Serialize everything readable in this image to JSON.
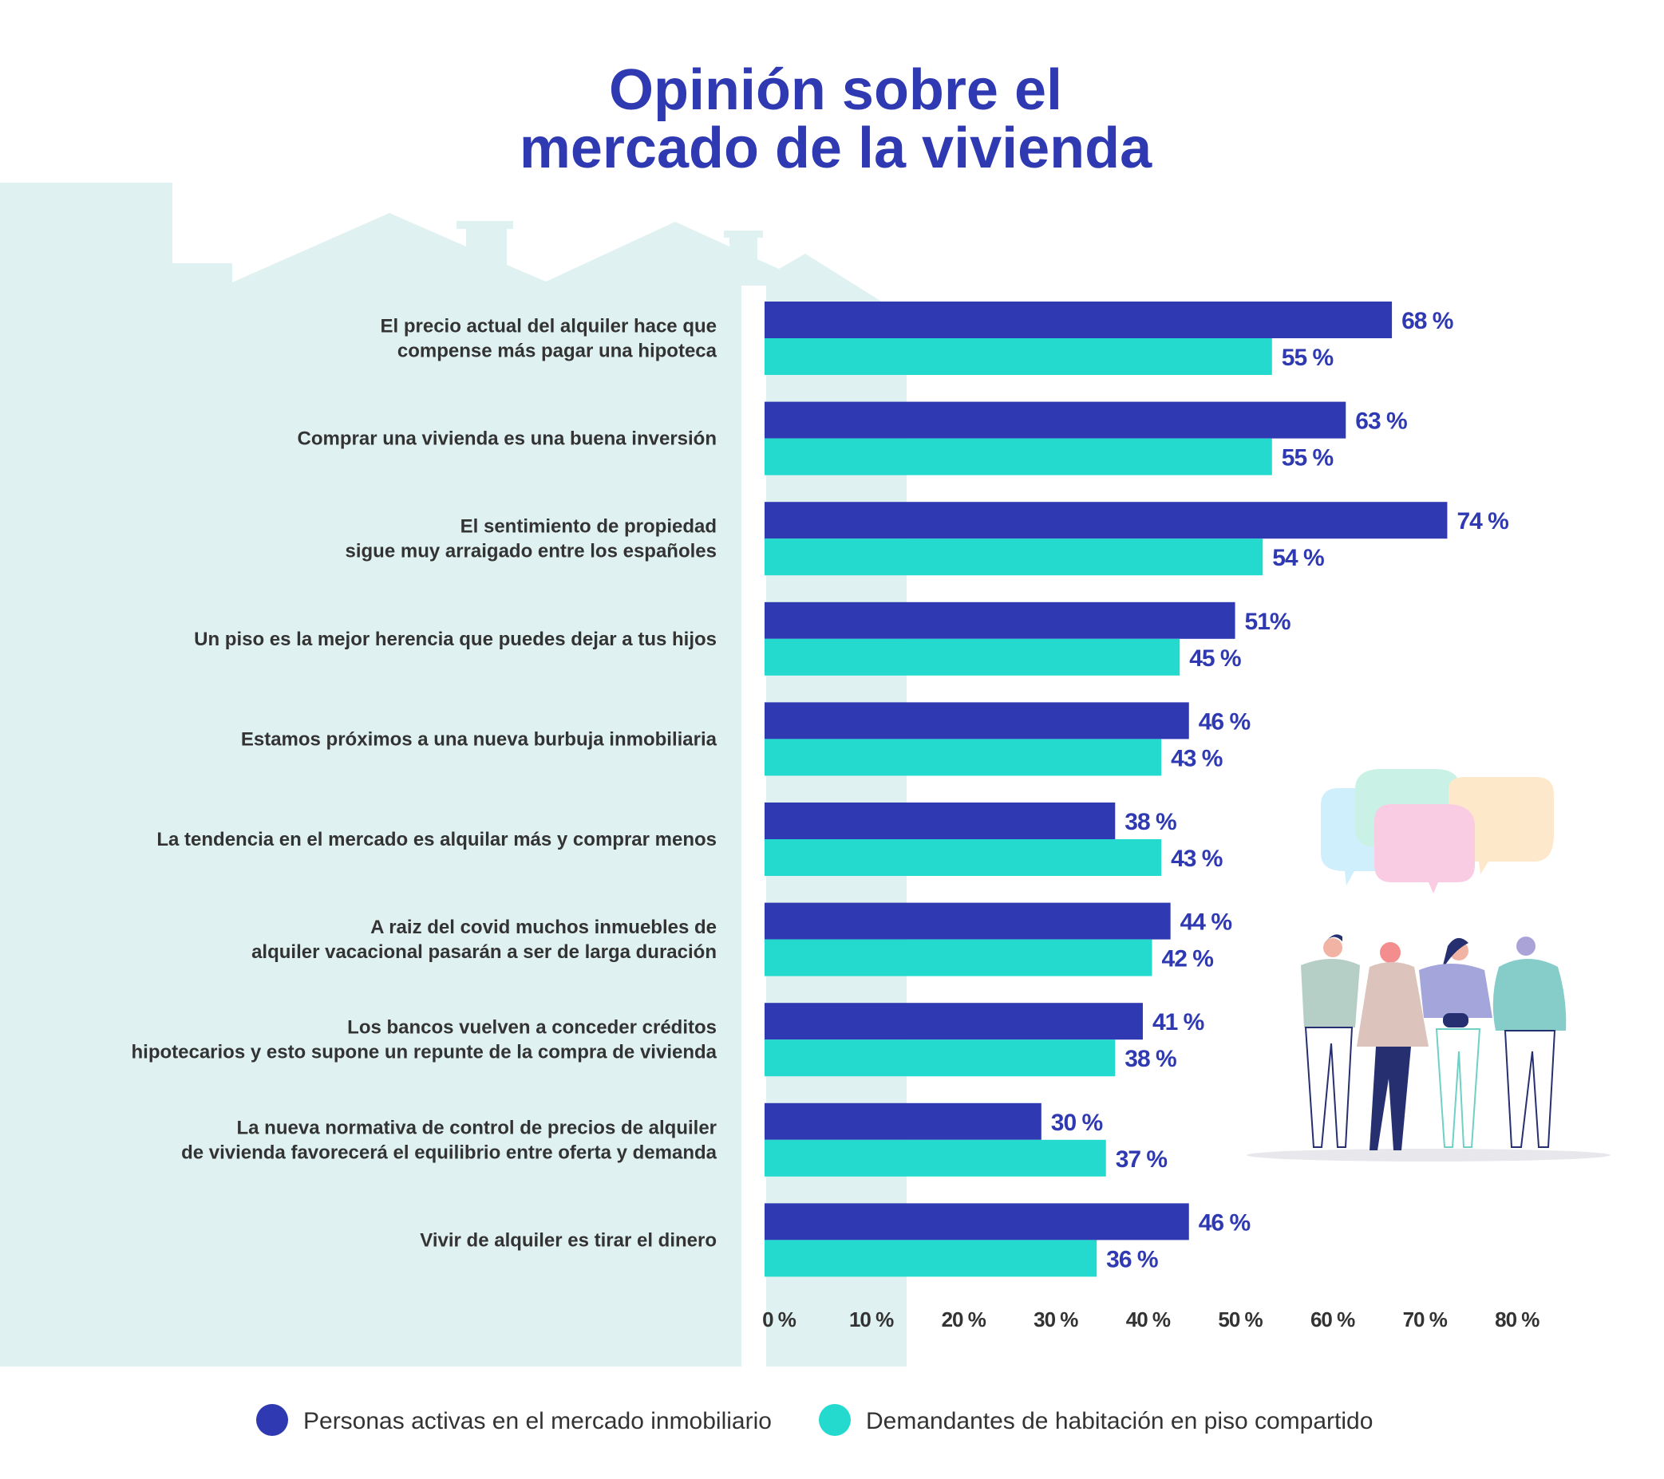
{
  "title_lines": [
    "Opinión sobre el",
    "mercado de la vivienda"
  ],
  "colors": {
    "series1": "#2f3ab2",
    "series2": "#24dacf",
    "background_panel": "#dff1f0",
    "text": "#333333"
  },
  "chart_data": {
    "type": "bar",
    "orientation": "horizontal",
    "title": "Opinión sobre el mercado de la vivienda",
    "categories": [
      [
        "El precio actual del alquiler hace que",
        "compense más pagar una hipoteca"
      ],
      [
        "Comprar una vivienda es una buena inversión"
      ],
      [
        "El sentimiento de propiedad",
        "sigue muy arraigado entre los españoles"
      ],
      [
        "Un piso es la mejor herencia que puedes dejar a tus hijos"
      ],
      [
        "Estamos próximos a una nueva burbuja inmobiliaria"
      ],
      [
        "La tendencia en el mercado es alquilar más y comprar menos"
      ],
      [
        "A raiz del covid muchos inmuebles de",
        "alquiler vacacional pasarán a ser de larga duración"
      ],
      [
        "Los bancos vuelven a conceder créditos",
        "hipotecarios y esto supone un repunte de la compra de vivienda"
      ],
      [
        "La nueva normativa de control de precios de alquiler",
        "de vivienda favorecerá el equilibrio entre oferta y demanda"
      ],
      [
        "Vivir de alquiler es tirar el dinero"
      ]
    ],
    "series": [
      {
        "name": "Personas activas en el mercado inmobiliario",
        "color": "#2f3ab2",
        "values": [
          68,
          63,
          74,
          51,
          46,
          38,
          44,
          41,
          30,
          46
        ],
        "labels": [
          "68 %",
          "63 %",
          "74 %",
          "51%",
          "46 %",
          "38 %",
          "44 %",
          "41 %",
          "30 %",
          "46 %"
        ]
      },
      {
        "name": "Demandantes de habitación en piso compartido",
        "color": "#24dacf",
        "values": [
          55,
          55,
          54,
          45,
          43,
          43,
          42,
          38,
          37,
          36
        ],
        "labels": [
          "55 %",
          "55 %",
          "54 %",
          "45 %",
          "43 %",
          "43 %",
          "42 %",
          "38 %",
          "37 %",
          "36 %"
        ]
      }
    ],
    "xticks": [
      "0 %",
      "10 %",
      "20 %",
      "30 %",
      "40 %",
      "50 %",
      "60 %",
      "70 %",
      "80 %"
    ],
    "xlim": [
      0,
      80
    ],
    "grid": false,
    "legend_placement": "bottom"
  }
}
